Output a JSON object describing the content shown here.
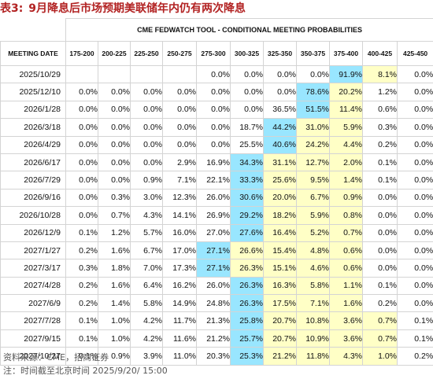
{
  "title": {
    "prefix": "表3:",
    "text": "9月降息后市场预期美联储年内仍有两次降息"
  },
  "table": {
    "group_header": "CME FEDWATCH TOOL - CONDITIONAL MEETING PROBABILITIES",
    "date_header": "MEETING DATE",
    "columns": [
      "175-200",
      "200-225",
      "225-250",
      "250-275",
      "275-300",
      "300-325",
      "325-350",
      "350-375",
      "375-400",
      "400-425",
      "425-450"
    ],
    "rows": [
      {
        "date": "2025/10/29",
        "values": [
          "",
          "",
          "",
          "",
          "0.0%",
          "0.0%",
          "0.0%",
          "0.0%",
          "91.9%",
          "8.1%",
          "0.0%"
        ],
        "hl": {
          "8": "blue",
          "9": "yellow"
        }
      },
      {
        "date": "2025/12/10",
        "values": [
          "0.0%",
          "0.0%",
          "0.0%",
          "0.0%",
          "0.0%",
          "0.0%",
          "0.0%",
          "78.6%",
          "20.2%",
          "1.2%",
          "0.0%"
        ],
        "hl": {
          "7": "blue",
          "8": "yellow"
        }
      },
      {
        "date": "2026/1/28",
        "values": [
          "0.0%",
          "0.0%",
          "0.0%",
          "0.0%",
          "0.0%",
          "0.0%",
          "36.5%",
          "51.5%",
          "11.4%",
          "0.6%",
          "0.0%"
        ],
        "hl": {
          "7": "blue",
          "8": "yellow"
        }
      },
      {
        "date": "2026/3/18",
        "values": [
          "0.0%",
          "0.0%",
          "0.0%",
          "0.0%",
          "0.0%",
          "18.7%",
          "44.2%",
          "31.0%",
          "5.9%",
          "0.3%",
          "0.0%"
        ],
        "hl": {
          "6": "blue",
          "7": "yellow",
          "8": "yellow"
        }
      },
      {
        "date": "2026/4/29",
        "values": [
          "0.0%",
          "0.0%",
          "0.0%",
          "0.0%",
          "0.0%",
          "25.5%",
          "40.6%",
          "24.2%",
          "4.4%",
          "0.2%",
          "0.0%"
        ],
        "hl": {
          "6": "blue",
          "7": "yellow",
          "8": "yellow"
        }
      },
      {
        "date": "2026/6/17",
        "values": [
          "0.0%",
          "0.0%",
          "0.0%",
          "2.9%",
          "16.9%",
          "34.3%",
          "31.1%",
          "12.7%",
          "2.0%",
          "0.1%",
          "0.0%"
        ],
        "hl": {
          "5": "blue",
          "6": "yellow",
          "7": "yellow",
          "8": "yellow"
        }
      },
      {
        "date": "2026/7/29",
        "values": [
          "0.0%",
          "0.0%",
          "0.9%",
          "7.1%",
          "22.1%",
          "33.3%",
          "25.6%",
          "9.5%",
          "1.4%",
          "0.1%",
          "0.0%"
        ],
        "hl": {
          "5": "blue",
          "6": "yellow",
          "7": "yellow",
          "8": "yellow"
        }
      },
      {
        "date": "2026/9/16",
        "values": [
          "0.0%",
          "0.3%",
          "3.0%",
          "12.3%",
          "26.0%",
          "30.6%",
          "20.0%",
          "6.7%",
          "0.9%",
          "0.0%",
          "0.0%"
        ],
        "hl": {
          "5": "blue",
          "6": "yellow",
          "7": "yellow",
          "8": "yellow"
        }
      },
      {
        "date": "2026/10/28",
        "values": [
          "0.0%",
          "0.7%",
          "4.3%",
          "14.1%",
          "26.9%",
          "29.2%",
          "18.2%",
          "5.9%",
          "0.8%",
          "0.0%",
          "0.0%"
        ],
        "hl": {
          "5": "blue",
          "6": "yellow",
          "7": "yellow",
          "8": "yellow"
        }
      },
      {
        "date": "2026/12/9",
        "values": [
          "0.1%",
          "1.2%",
          "5.7%",
          "16.0%",
          "27.0%",
          "27.6%",
          "16.4%",
          "5.2%",
          "0.7%",
          "0.0%",
          "0.0%"
        ],
        "hl": {
          "5": "blue",
          "6": "yellow",
          "7": "yellow",
          "8": "yellow"
        }
      },
      {
        "date": "2027/1/27",
        "values": [
          "0.2%",
          "1.6%",
          "6.7%",
          "17.0%",
          "27.1%",
          "26.6%",
          "15.4%",
          "4.8%",
          "0.6%",
          "0.0%",
          "0.0%"
        ],
        "hl": {
          "4": "blue",
          "5": "yellow",
          "6": "yellow",
          "7": "yellow",
          "8": "yellow"
        }
      },
      {
        "date": "2027/3/17",
        "values": [
          "0.3%",
          "1.8%",
          "7.0%",
          "17.3%",
          "27.1%",
          "26.3%",
          "15.1%",
          "4.6%",
          "0.6%",
          "0.0%",
          "0.0%"
        ],
        "hl": {
          "4": "blue",
          "5": "yellow",
          "6": "yellow",
          "7": "yellow",
          "8": "yellow"
        }
      },
      {
        "date": "2027/4/28",
        "values": [
          "0.2%",
          "1.6%",
          "6.4%",
          "16.2%",
          "26.0%",
          "26.3%",
          "16.3%",
          "5.8%",
          "1.1%",
          "0.1%",
          "0.0%"
        ],
        "hl": {
          "5": "blue",
          "6": "yellow",
          "7": "yellow",
          "8": "yellow"
        }
      },
      {
        "date": "2027/6/9",
        "values": [
          "0.2%",
          "1.4%",
          "5.8%",
          "14.9%",
          "24.8%",
          "26.3%",
          "17.5%",
          "7.1%",
          "1.6%",
          "0.2%",
          "0.0%"
        ],
        "hl": {
          "5": "blue",
          "6": "yellow",
          "7": "yellow",
          "8": "yellow"
        }
      },
      {
        "date": "2027/7/28",
        "values": [
          "0.1%",
          "1.0%",
          "4.2%",
          "11.7%",
          "21.3%",
          "25.8%",
          "20.7%",
          "10.8%",
          "3.6%",
          "0.7%",
          "0.1%"
        ],
        "hl": {
          "5": "blue",
          "6": "yellow",
          "7": "yellow",
          "8": "yellow",
          "9": "yellow"
        }
      },
      {
        "date": "2027/9/15",
        "values": [
          "0.1%",
          "1.0%",
          "4.2%",
          "11.6%",
          "21.2%",
          "25.7%",
          "20.7%",
          "10.9%",
          "3.6%",
          "0.7%",
          "0.1%"
        ],
        "hl": {
          "5": "blue",
          "6": "yellow",
          "7": "yellow",
          "8": "yellow",
          "9": "yellow"
        }
      },
      {
        "date": "2027/10/27",
        "values": [
          "0.1%",
          "0.9%",
          "3.9%",
          "11.0%",
          "20.3%",
          "25.3%",
          "21.2%",
          "11.8%",
          "4.3%",
          "1.0%",
          "0.2%"
        ],
        "hl": {
          "5": "blue",
          "6": "yellow",
          "7": "yellow",
          "8": "yellow",
          "9": "yellow"
        }
      }
    ]
  },
  "source": "资料来源：CME，招商证券",
  "note": "注：时间截至北京时间 2025/9/20/ 15:00",
  "colors": {
    "title": "#b22222",
    "blue_highlight": "#99e6ff",
    "yellow_highlight": "#ffffc6"
  }
}
